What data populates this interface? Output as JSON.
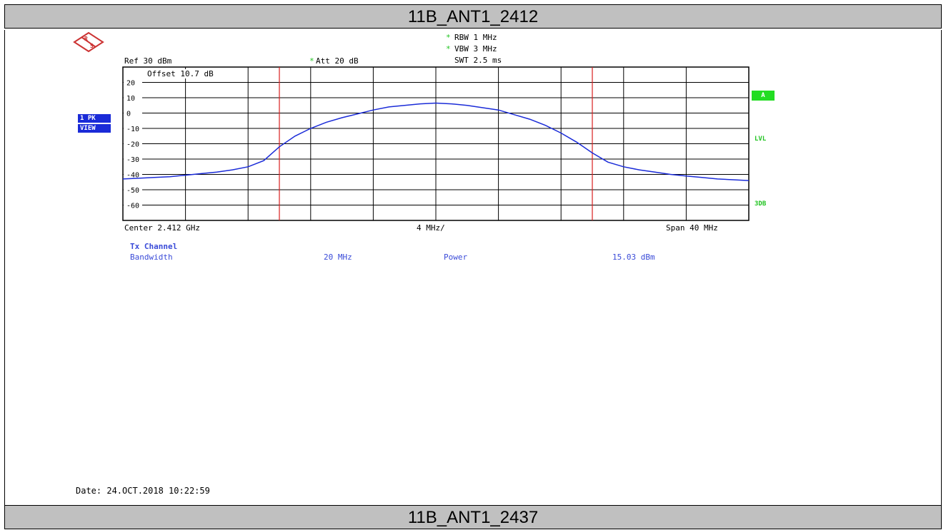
{
  "header_top": "11B_ANT1_2412",
  "header_bottom": "11B_ANT1_2437",
  "instrument": {
    "ref": "Ref  30 dBm",
    "att": "Att  20 dB",
    "rbw": "RBW 1 MHz",
    "vbw": "VBW 3 MHz",
    "swt": "SWT 2.5 ms",
    "offset": "Offset  10.7 dB",
    "trace_label_1": "1 PK",
    "trace_label_2": "VIEW",
    "side_a": "A",
    "side_lvl": "LVL",
    "side_3db": "3DB",
    "center": "Center 2.412 GHz",
    "div": "4 MHz/",
    "span": "Span 40 MHz",
    "date": "Date: 24.OCT.2018  10:22:59"
  },
  "results": {
    "title": "Tx Channel",
    "bandwidth_label": "Bandwidth",
    "bandwidth_value": "20 MHz",
    "power_label": "Power",
    "power_value": "15.03 dBm"
  },
  "colors": {
    "trace": "#1a2bd8",
    "marker_line": "#d82020",
    "grid": "#000000",
    "accent_green": "#22dd22"
  },
  "chart_data": {
    "type": "line",
    "title": "11B_ANT1_2412",
    "xlabel": "",
    "ylabel": "",
    "xlim": [
      2392,
      2432
    ],
    "ylim": [
      -70,
      30
    ],
    "y_ticks": [
      20,
      10,
      0,
      -10,
      -20,
      -30,
      -40,
      -50,
      -60
    ],
    "grid": true,
    "channel_edges_mhz": [
      2402,
      2422
    ],
    "series": [
      {
        "x": [
          2392,
          2393,
          2394,
          2395,
          2396,
          2397,
          2398,
          2399,
          2400,
          2401,
          2402,
          2403,
          2404,
          2405,
          2406,
          2407,
          2408,
          2409,
          2410,
          2411,
          2412,
          2413,
          2414,
          2415,
          2416,
          2417,
          2418,
          2419,
          2420,
          2421,
          2422,
          2423,
          2424,
          2425,
          2426,
          2427,
          2428,
          2429,
          2430,
          2431,
          2432
        ],
        "values": [
          -43,
          -42.5,
          -42,
          -41.5,
          -40.5,
          -39.5,
          -38.5,
          -37,
          -35,
          -31,
          -22,
          -15,
          -10,
          -6,
          -3,
          -0.5,
          2,
          4,
          5,
          6,
          6.5,
          6,
          5,
          3.5,
          2,
          -1,
          -4,
          -8,
          -13,
          -19,
          -26,
          -32,
          -35,
          -37,
          -38.5,
          -40,
          -41,
          -42,
          -43,
          -43.5,
          -44
        ]
      }
    ]
  }
}
